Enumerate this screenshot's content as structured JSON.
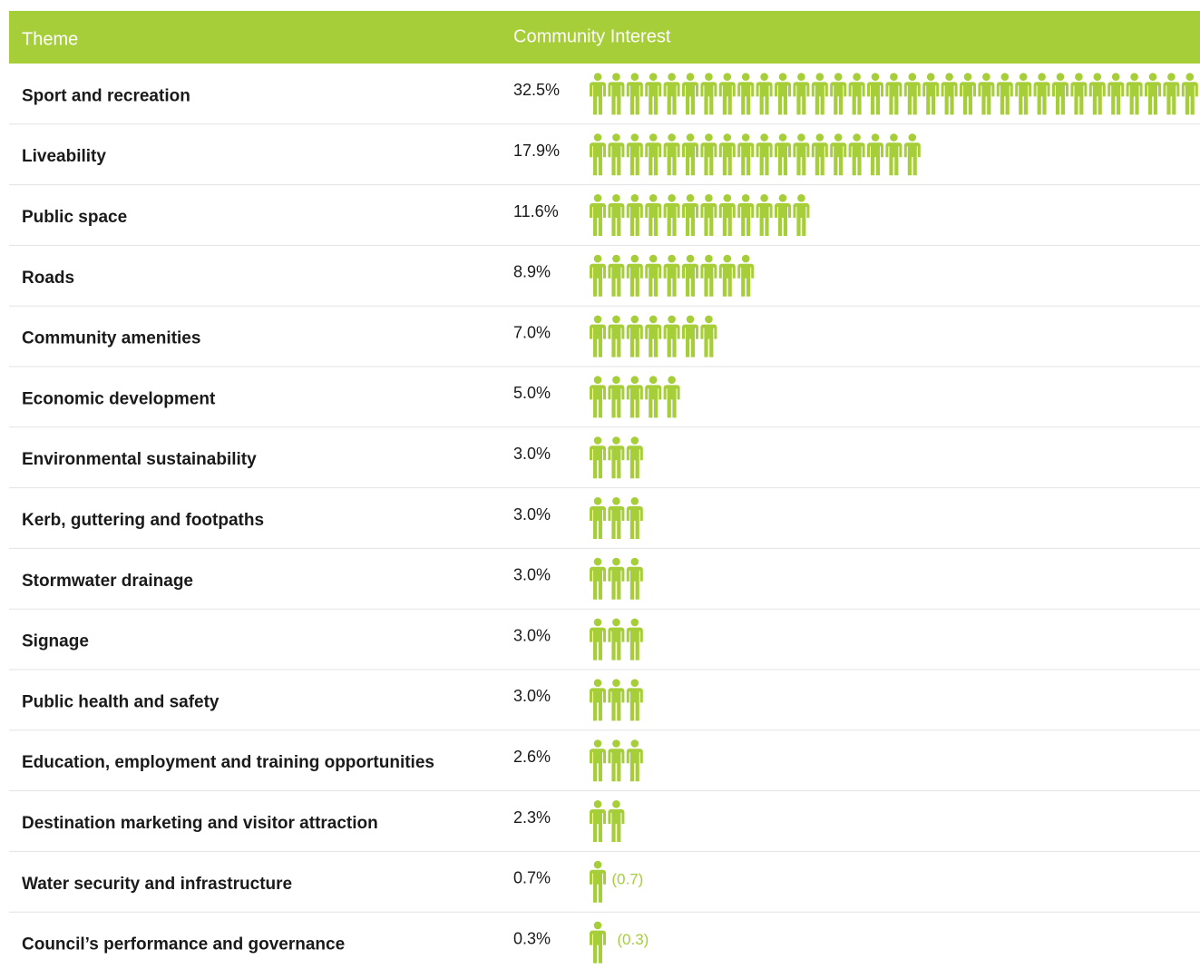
{
  "chart_data": {
    "type": "pictograph",
    "headers": [
      "Theme",
      "Community Interest"
    ],
    "color": "#a6ce39",
    "categories": [
      "Sport and recreation",
      "Liveability",
      "Public space",
      "Roads",
      "Community amenities",
      "Economic development",
      "Environmental sustainability",
      "Kerb, guttering and footpaths",
      "Stormwater drainage",
      "Signage",
      "Public health and safety",
      "Education, employment and training opportunities",
      "Destination marketing and visitor attraction",
      "Water security and infrastructure",
      "Council’s performance and governance"
    ],
    "values": [
      32.5,
      17.9,
      11.6,
      8.9,
      7.0,
      5.0,
      3.0,
      3.0,
      3.0,
      3.0,
      3.0,
      2.6,
      2.3,
      0.7,
      0.3
    ],
    "value_labels": [
      "32.5%",
      "17.9%",
      "11.6%",
      "8.9%",
      "7.0%",
      "5.0%",
      "3.0%",
      "3.0%",
      "3.0%",
      "3.0%",
      "3.0%",
      "2.6%",
      "2.3%",
      "0.7%",
      "0.3%"
    ],
    "icon_labels": [
      null,
      null,
      null,
      null,
      null,
      null,
      null,
      null,
      null,
      null,
      null,
      null,
      null,
      "(0.7)",
      "(0.3)"
    ]
  }
}
